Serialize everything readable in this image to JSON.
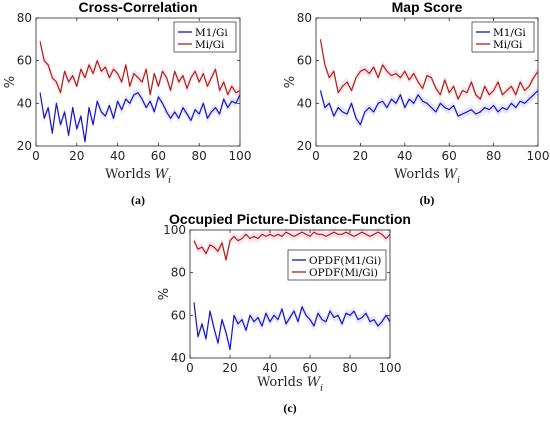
{
  "colors": {
    "blue": "#1414d2",
    "red": "#b41e14",
    "band_red": "#f2c4d6",
    "band_blue": "#c8c8f0"
  },
  "chart_data": [
    {
      "type": "line",
      "title": "Cross-Correlation",
      "xlabel_text": "Worlds ",
      "xlabel_var": "W",
      "xlabel_sub": "i",
      "ylabel": "%",
      "xlim": [
        0,
        100
      ],
      "ylim": [
        20,
        80
      ],
      "xticks": [
        0,
        20,
        40,
        60,
        80,
        100
      ],
      "yticks": [
        20,
        40,
        60,
        80
      ],
      "caption": "(a)",
      "legend": "top-right",
      "series": [
        {
          "name": "M1/Gi",
          "color": "blue",
          "x": [
            2,
            4,
            6,
            8,
            10,
            12,
            14,
            16,
            18,
            20,
            22,
            24,
            26,
            28,
            30,
            32,
            34,
            36,
            38,
            40,
            42,
            44,
            46,
            48,
            50,
            52,
            54,
            56,
            58,
            60,
            62,
            64,
            66,
            68,
            70,
            72,
            74,
            76,
            78,
            80,
            82,
            84,
            86,
            88,
            90,
            92,
            94,
            96,
            98,
            100
          ],
          "values": [
            45,
            33,
            38,
            26,
            40,
            30,
            36,
            25,
            38,
            28,
            34,
            22,
            38,
            30,
            41,
            36,
            34,
            39,
            33,
            41,
            37,
            42,
            40,
            44,
            45,
            42,
            38,
            41,
            36,
            43,
            40,
            36,
            33,
            36,
            33,
            38,
            35,
            32,
            37,
            35,
            40,
            33,
            36,
            38,
            35,
            42,
            38,
            41,
            40,
            44
          ]
        },
        {
          "name": "Mi/Gi",
          "color": "red",
          "x": [
            2,
            4,
            6,
            8,
            10,
            12,
            14,
            16,
            18,
            20,
            22,
            24,
            26,
            28,
            30,
            32,
            34,
            36,
            38,
            40,
            42,
            44,
            46,
            48,
            50,
            52,
            54,
            56,
            58,
            60,
            62,
            64,
            66,
            68,
            70,
            72,
            74,
            76,
            78,
            80,
            82,
            84,
            86,
            88,
            90,
            92,
            94,
            96,
            98,
            100
          ],
          "values": [
            69,
            60,
            58,
            52,
            50,
            45,
            55,
            50,
            53,
            48,
            56,
            52,
            58,
            54,
            60,
            55,
            57,
            52,
            56,
            54,
            50,
            58,
            48,
            54,
            52,
            50,
            56,
            44,
            54,
            48,
            55,
            52,
            46,
            55,
            50,
            53,
            47,
            52,
            55,
            50,
            54,
            48,
            52,
            56,
            46,
            50,
            44,
            48,
            45,
            46
          ]
        }
      ]
    },
    {
      "type": "line",
      "title": "Map Score",
      "xlabel_text": "Worlds ",
      "xlabel_var": "W",
      "xlabel_sub": "i",
      "ylabel": "%",
      "xlim": [
        0,
        100
      ],
      "ylim": [
        20,
        80
      ],
      "xticks": [
        0,
        20,
        40,
        60,
        80,
        100
      ],
      "yticks": [
        20,
        40,
        60,
        80
      ],
      "caption": "(b)",
      "legend": "top-right",
      "series": [
        {
          "name": "M1/Gi",
          "color": "blue",
          "x": [
            2,
            4,
            6,
            8,
            10,
            12,
            14,
            16,
            18,
            20,
            22,
            24,
            26,
            28,
            30,
            32,
            34,
            36,
            38,
            40,
            42,
            44,
            46,
            48,
            50,
            52,
            54,
            56,
            58,
            60,
            62,
            64,
            66,
            68,
            70,
            72,
            74,
            76,
            78,
            80,
            82,
            84,
            86,
            88,
            90,
            92,
            94,
            96,
            98,
            100
          ],
          "values": [
            46,
            38,
            40,
            34,
            38,
            36,
            35,
            40,
            33,
            30,
            36,
            38,
            36,
            40,
            41,
            38,
            42,
            40,
            44,
            38,
            42,
            40,
            44,
            41,
            40,
            38,
            36,
            40,
            38,
            37,
            39,
            34,
            35,
            36,
            37,
            35,
            36,
            38,
            37,
            39,
            36,
            38,
            37,
            40,
            38,
            41,
            40,
            42,
            44,
            46
          ]
        },
        {
          "name": "Mi/Gi",
          "color": "red",
          "x": [
            2,
            4,
            6,
            8,
            10,
            12,
            14,
            16,
            18,
            20,
            22,
            24,
            26,
            28,
            30,
            32,
            34,
            36,
            38,
            40,
            42,
            44,
            46,
            48,
            50,
            52,
            54,
            56,
            58,
            60,
            62,
            64,
            66,
            68,
            70,
            72,
            74,
            76,
            78,
            80,
            82,
            84,
            86,
            88,
            90,
            92,
            94,
            96,
            98,
            100
          ],
          "values": [
            70,
            58,
            52,
            55,
            45,
            48,
            50,
            46,
            52,
            55,
            56,
            54,
            57,
            52,
            58,
            55,
            53,
            54,
            52,
            55,
            51,
            54,
            50,
            47,
            53,
            52,
            47,
            44,
            51,
            45,
            48,
            42,
            46,
            45,
            50,
            44,
            42,
            48,
            44,
            46,
            50,
            44,
            46,
            48,
            44,
            50,
            46,
            48,
            52,
            55
          ]
        }
      ]
    },
    {
      "type": "line",
      "title": "Occupied Picture-Distance-Function",
      "xlabel_text": "Worlds ",
      "xlabel_var": "W",
      "xlabel_sub": "i",
      "ylabel": "%",
      "xlim": [
        0,
        100
      ],
      "ylim": [
        40,
        100
      ],
      "xticks": [
        0,
        20,
        40,
        60,
        80,
        100
      ],
      "yticks": [
        40,
        60,
        80,
        100
      ],
      "caption": "(c)",
      "legend": "right",
      "series": [
        {
          "name": "OPDF(M1/Gi)",
          "color": "blue",
          "x": [
            2,
            4,
            6,
            8,
            10,
            12,
            14,
            16,
            18,
            20,
            22,
            24,
            26,
            28,
            30,
            32,
            34,
            36,
            38,
            40,
            42,
            44,
            46,
            48,
            50,
            52,
            54,
            56,
            58,
            60,
            62,
            64,
            66,
            68,
            70,
            72,
            74,
            76,
            78,
            80,
            82,
            84,
            86,
            88,
            90,
            92,
            94,
            96,
            98,
            100
          ],
          "values": [
            66,
            50,
            56,
            49,
            62,
            54,
            47,
            58,
            52,
            44,
            60,
            56,
            58,
            53,
            60,
            57,
            59,
            55,
            61,
            57,
            60,
            58,
            63,
            56,
            59,
            62,
            57,
            64,
            60,
            58,
            55,
            61,
            58,
            57,
            62,
            59,
            60,
            56,
            61,
            60,
            62,
            58,
            59,
            61,
            57,
            58,
            55,
            57,
            60,
            57
          ]
        },
        {
          "name": "OPDF(Mi/Gi)",
          "color": "red",
          "x": [
            2,
            4,
            6,
            8,
            10,
            12,
            14,
            16,
            18,
            20,
            22,
            24,
            26,
            28,
            30,
            32,
            34,
            36,
            38,
            40,
            42,
            44,
            46,
            48,
            50,
            52,
            54,
            56,
            58,
            60,
            62,
            64,
            66,
            68,
            70,
            72,
            74,
            76,
            78,
            80,
            82,
            84,
            86,
            88,
            90,
            92,
            94,
            96,
            98,
            100
          ],
          "values": [
            95,
            91,
            92,
            89,
            93,
            92,
            90,
            94,
            86,
            95,
            97,
            95,
            96,
            98,
            96,
            97,
            96,
            98,
            97,
            98,
            97,
            98,
            97,
            99,
            98,
            97,
            98,
            99,
            98,
            97,
            99,
            98,
            98,
            97,
            98,
            99,
            98,
            98,
            99,
            98,
            97,
            98,
            99,
            98,
            97,
            98,
            99,
            98,
            96,
            98
          ]
        }
      ]
    }
  ]
}
